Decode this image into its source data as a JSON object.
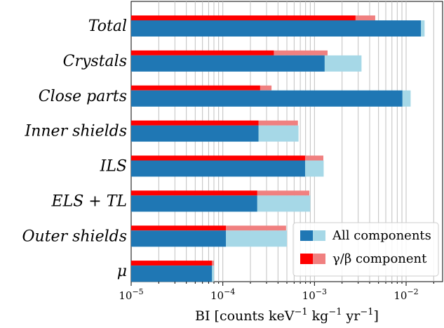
{
  "chart_data": {
    "type": "bar",
    "orientation": "horizontal",
    "xscale": "log",
    "xlim": [
      1e-05,
      0.025
    ],
    "xticks": [
      {
        "value": 1e-05,
        "base": "10",
        "exp": "−5"
      },
      {
        "value": 0.0001,
        "base": "10",
        "exp": "−4"
      },
      {
        "value": 0.001,
        "base": "10",
        "exp": "−3"
      },
      {
        "value": 0.01,
        "base": "10",
        "exp": "−2"
      }
    ],
    "xlabel_parts": [
      "BI [counts keV",
      "−1",
      " kg",
      "−1",
      " yr",
      "−1",
      "]"
    ],
    "grid": "vertical minor and major gridlines",
    "categories": [
      "Total",
      "Crystals",
      "Close parts",
      "Inner shields",
      "ILS",
      "ELS + TL",
      "Outer shields",
      "μ"
    ],
    "series": [
      {
        "name": "All components",
        "color": "#1f77b4",
        "light_color": "#a6d8e7",
        "values": [
          0.0145,
          0.00129,
          0.0091,
          0.000245,
          0.00079,
          0.000237,
          0.000108,
          7.6e-05
        ],
        "upper_values": [
          0.0159,
          0.00326,
          0.0112,
          0.00067,
          0.00126,
          0.0009,
          0.0005,
          8e-05
        ]
      },
      {
        "name": "γ/β component",
        "color": "#ff0000",
        "light_color": "#f08080",
        "values": [
          0.0028,
          0.00036,
          0.000255,
          0.000245,
          0.00079,
          0.000237,
          0.000108,
          7.6e-05
        ],
        "upper_values": [
          0.0046,
          0.00139,
          0.00034,
          0.00066,
          0.00125,
          0.00088,
          0.00049,
          8e-05
        ]
      }
    ],
    "legend": {
      "placement": "lower-right",
      "entries": [
        "All components",
        "γ/β component"
      ]
    }
  }
}
